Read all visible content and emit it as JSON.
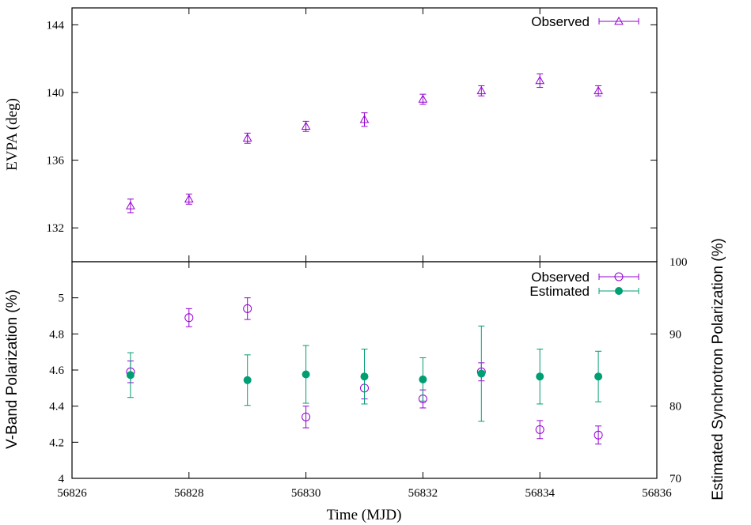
{
  "chart_data": [
    {
      "type": "scatter",
      "title": "",
      "xlabel": "",
      "ylabel": "EVPA (deg)",
      "xlim": [
        56826,
        56836
      ],
      "ylim": [
        130,
        145
      ],
      "yticks": [
        132,
        136,
        140,
        144
      ],
      "grid": false,
      "legend_position": "top-right",
      "series": [
        {
          "name": "Observed",
          "marker": "open-triangle",
          "color": "#9400d3",
          "x": [
            56827,
            56828,
            56829,
            56830,
            56831,
            56832,
            56833,
            56834,
            56835
          ],
          "y": [
            133.3,
            133.7,
            137.3,
            138.0,
            138.4,
            139.6,
            140.1,
            140.7,
            140.1
          ],
          "yerr": [
            0.4,
            0.3,
            0.3,
            0.3,
            0.4,
            0.3,
            0.3,
            0.4,
            0.3
          ]
        }
      ]
    },
    {
      "type": "scatter",
      "title": "",
      "xlabel": "Time (MJD)",
      "ylabel": "V-Band Polarization (%)",
      "y2label": "Estimated Synchrotron Polarization (%)",
      "xlim": [
        56826,
        56836
      ],
      "xticks": [
        56826,
        56828,
        56830,
        56832,
        56834,
        56836
      ],
      "ylim": [
        4,
        5.2
      ],
      "yticks": [
        4,
        4.2,
        4.4,
        4.6,
        4.8,
        5
      ],
      "y2lim": [
        70,
        100
      ],
      "y2ticks": [
        70,
        80,
        90,
        100
      ],
      "grid": false,
      "legend_position": "top-right",
      "series": [
        {
          "name": "Observed",
          "axis": "left",
          "marker": "open-circle",
          "color": "#9400d3",
          "x": [
            56827,
            56828,
            56829,
            56830,
            56831,
            56832,
            56833,
            56834,
            56835
          ],
          "y": [
            4.59,
            4.89,
            4.94,
            4.34,
            4.5,
            4.44,
            4.59,
            4.27,
            4.24
          ],
          "yerr": [
            0.06,
            0.05,
            0.06,
            0.06,
            0.06,
            0.05,
            0.05,
            0.05,
            0.05
          ]
        },
        {
          "name": "Estimated",
          "axis": "right",
          "marker": "filled-circle",
          "color": "#009e73",
          "x": [
            56827,
            56828,
            56829,
            56830,
            56831,
            56832,
            56833,
            56834,
            56835
          ],
          "y": [
            84.3,
            null,
            83.6,
            84.4,
            84.1,
            83.7,
            84.5,
            84.1,
            84.1
          ],
          "yerr": [
            3.1,
            null,
            3.5,
            4.0,
            3.8,
            3.0,
            6.6,
            3.8,
            3.5
          ]
        }
      ]
    }
  ]
}
